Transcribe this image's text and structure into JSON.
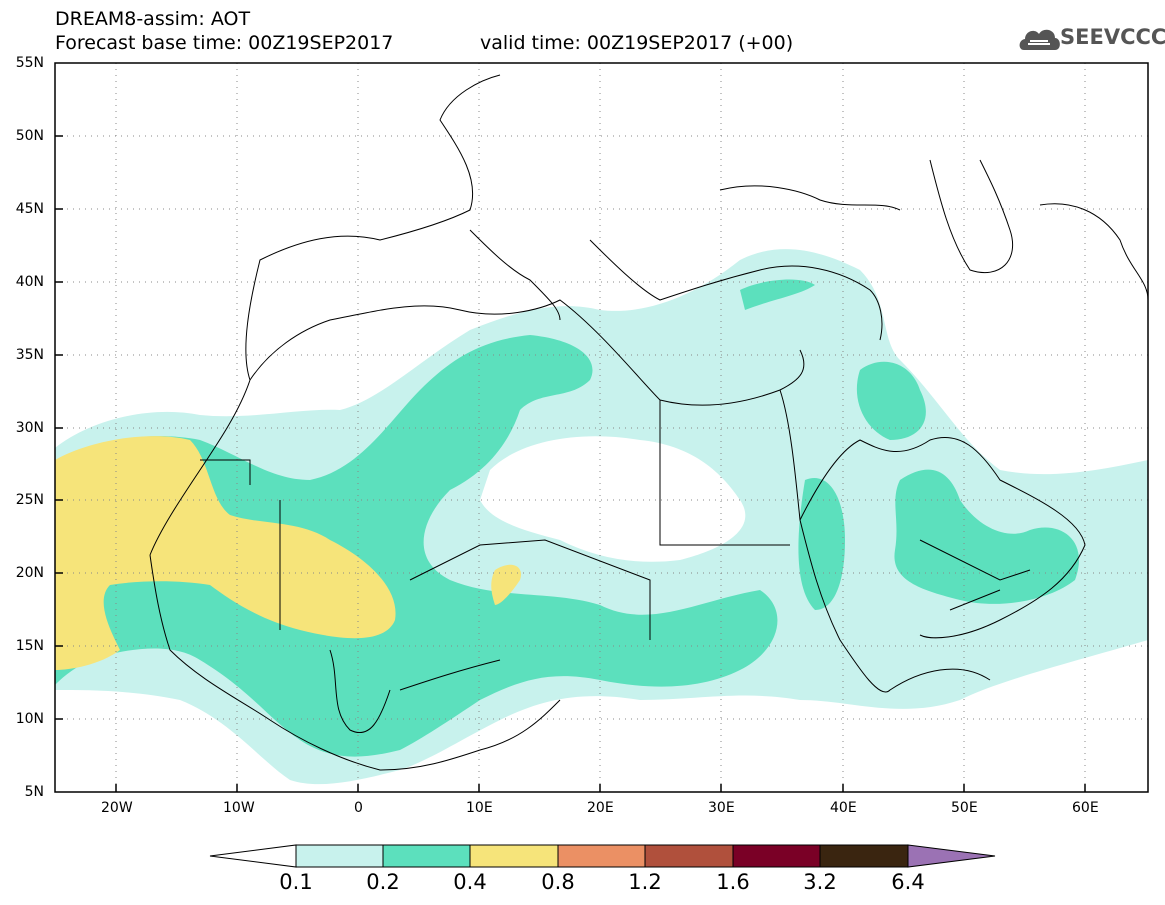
{
  "header": {
    "title_line1": "DREAM8-assim: AOT",
    "title_line2": "Forecast base time: 00Z19SEP2017",
    "valid_time": "valid time: 00Z19SEP2017 (+00)",
    "logo_text": "SEEVCCC",
    "logo_icon": "cloud-logo-icon"
  },
  "map": {
    "projection": "lat-lon",
    "lon_range": [
      -25,
      65
    ],
    "lat_range": [
      5,
      55
    ],
    "x_ticks": [
      "20W",
      "10W",
      "0",
      "10E",
      "20E",
      "30E",
      "40E",
      "50E",
      "60E"
    ],
    "y_ticks": [
      "55N",
      "50N",
      "45N",
      "40N",
      "35N",
      "30N",
      "25N",
      "20N",
      "15N",
      "10N",
      "5N"
    ],
    "gridlines": "dotted",
    "field": "Aerosol optical thickness"
  },
  "colorbar": {
    "colors": [
      "#ffffff",
      "#c8f2ed",
      "#5ce0bd",
      "#f6e47a",
      "#eb9064",
      "#b0503c",
      "#7a0026",
      "#3a2510",
      "#9b72b4"
    ],
    "labels": [
      "0.1",
      "0.2",
      "0.4",
      "0.8",
      "1.2",
      "1.6",
      "3.2",
      "6.4"
    ]
  }
}
